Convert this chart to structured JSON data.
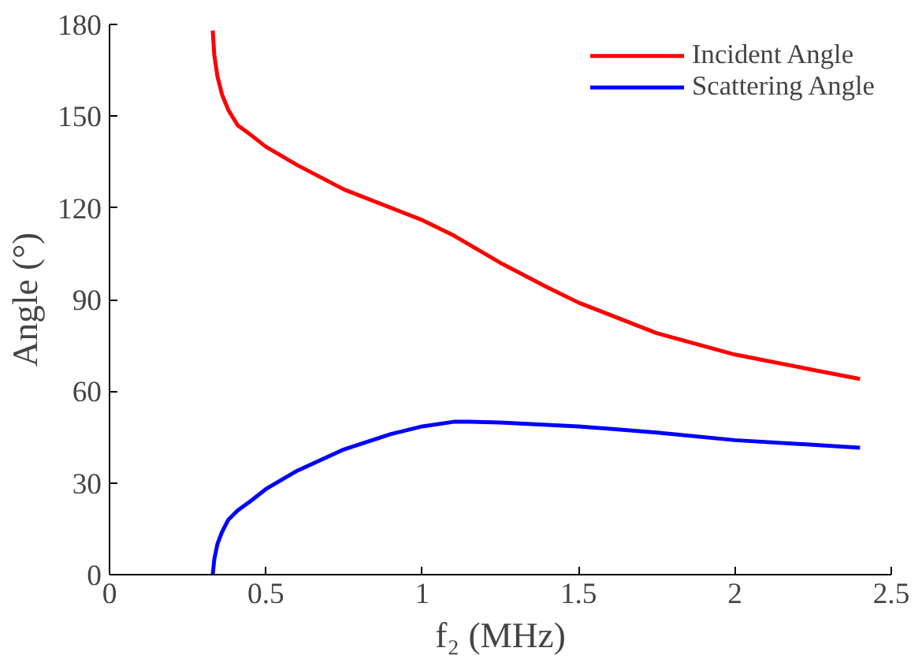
{
  "chart_data": {
    "type": "line",
    "xlabel": "f₂ (MHz)",
    "ylabel": "Angle (°)",
    "xlim": [
      0,
      2.5
    ],
    "ylim": [
      0,
      180
    ],
    "xticks": [
      0,
      0.5,
      1,
      1.5,
      2,
      2.5
    ],
    "yticks": [
      0,
      30,
      60,
      90,
      120,
      150,
      180
    ],
    "grid": false,
    "legend": "top right",
    "line_style": "solid",
    "marker": "none",
    "series": [
      {
        "name": "Incident Angle",
        "color": "#ff0000",
        "x": [
          0.33,
          0.335,
          0.345,
          0.36,
          0.38,
          0.41,
          0.45,
          0.5,
          0.6,
          0.75,
          0.9,
          1.0,
          1.1,
          1.25,
          1.4,
          1.5,
          1.75,
          2.0,
          2.25,
          2.4
        ],
        "values": [
          178,
          170,
          163,
          157,
          152,
          147,
          144,
          140,
          134,
          126,
          120,
          116,
          111,
          102,
          94,
          89,
          79,
          72,
          67,
          64
        ]
      },
      {
        "name": "Scattering Angle",
        "color": "#0000ff",
        "x": [
          0.33,
          0.335,
          0.345,
          0.36,
          0.38,
          0.41,
          0.45,
          0.5,
          0.6,
          0.75,
          0.9,
          1.0,
          1.1,
          1.15,
          1.25,
          1.5,
          1.75,
          2.0,
          2.25,
          2.4
        ],
        "values": [
          0,
          5,
          10,
          14,
          18,
          21,
          24,
          28,
          34,
          41,
          46,
          48.5,
          50,
          50,
          49.8,
          48.5,
          46.5,
          44,
          42.5,
          41.5
        ]
      }
    ]
  }
}
